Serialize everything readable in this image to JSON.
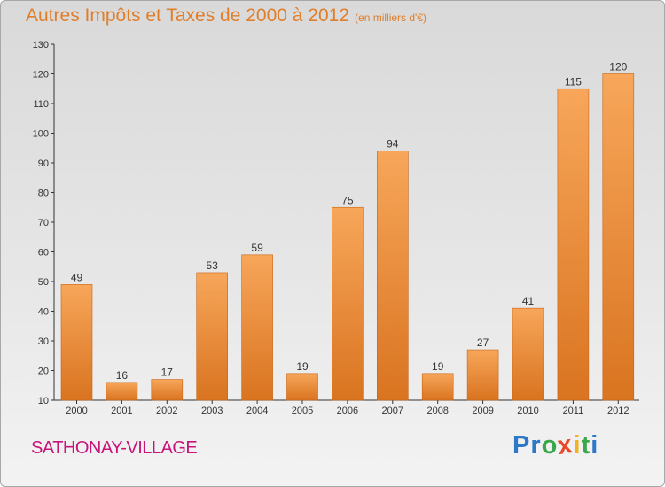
{
  "header": {
    "title": "Autres Impôts et Taxes de 2000 à 2012",
    "unit": "(en milliers d'€)"
  },
  "footer": {
    "commune": "SATHONAY-VILLAGE",
    "logo": {
      "letters": [
        "P",
        "r",
        "o",
        "x",
        "i",
        "t",
        "i"
      ],
      "colors": [
        "#2e78c8",
        "#2e78c8",
        "#3aa84a",
        "#e8482a",
        "#f0b21e",
        "#3aa84a",
        "#2e78c8"
      ]
    }
  },
  "colors": {
    "bar_top": "#f7a65a",
    "bar_bottom": "#d97420",
    "bar_edge": "#c96414",
    "title": "#e07e2a",
    "commune": "#c8157a",
    "axis": "#333333"
  },
  "chart_data": {
    "type": "bar",
    "title": "Autres Impôts et Taxes de 2000 à 2012",
    "subtitle": "(en milliers d'€)",
    "categories": [
      "2000",
      "2001",
      "2002",
      "2003",
      "2004",
      "2005",
      "2006",
      "2007",
      "2008",
      "2009",
      "2010",
      "2011",
      "2012"
    ],
    "values": [
      49,
      16,
      17,
      53,
      59,
      19,
      75,
      94,
      19,
      27,
      41,
      115,
      120
    ],
    "ylim": [
      10,
      130
    ],
    "yticks": [
      10,
      20,
      30,
      40,
      50,
      60,
      70,
      80,
      90,
      100,
      110,
      120,
      130
    ],
    "xlabel": "",
    "ylabel": "",
    "grid": false,
    "data_labels": true
  }
}
